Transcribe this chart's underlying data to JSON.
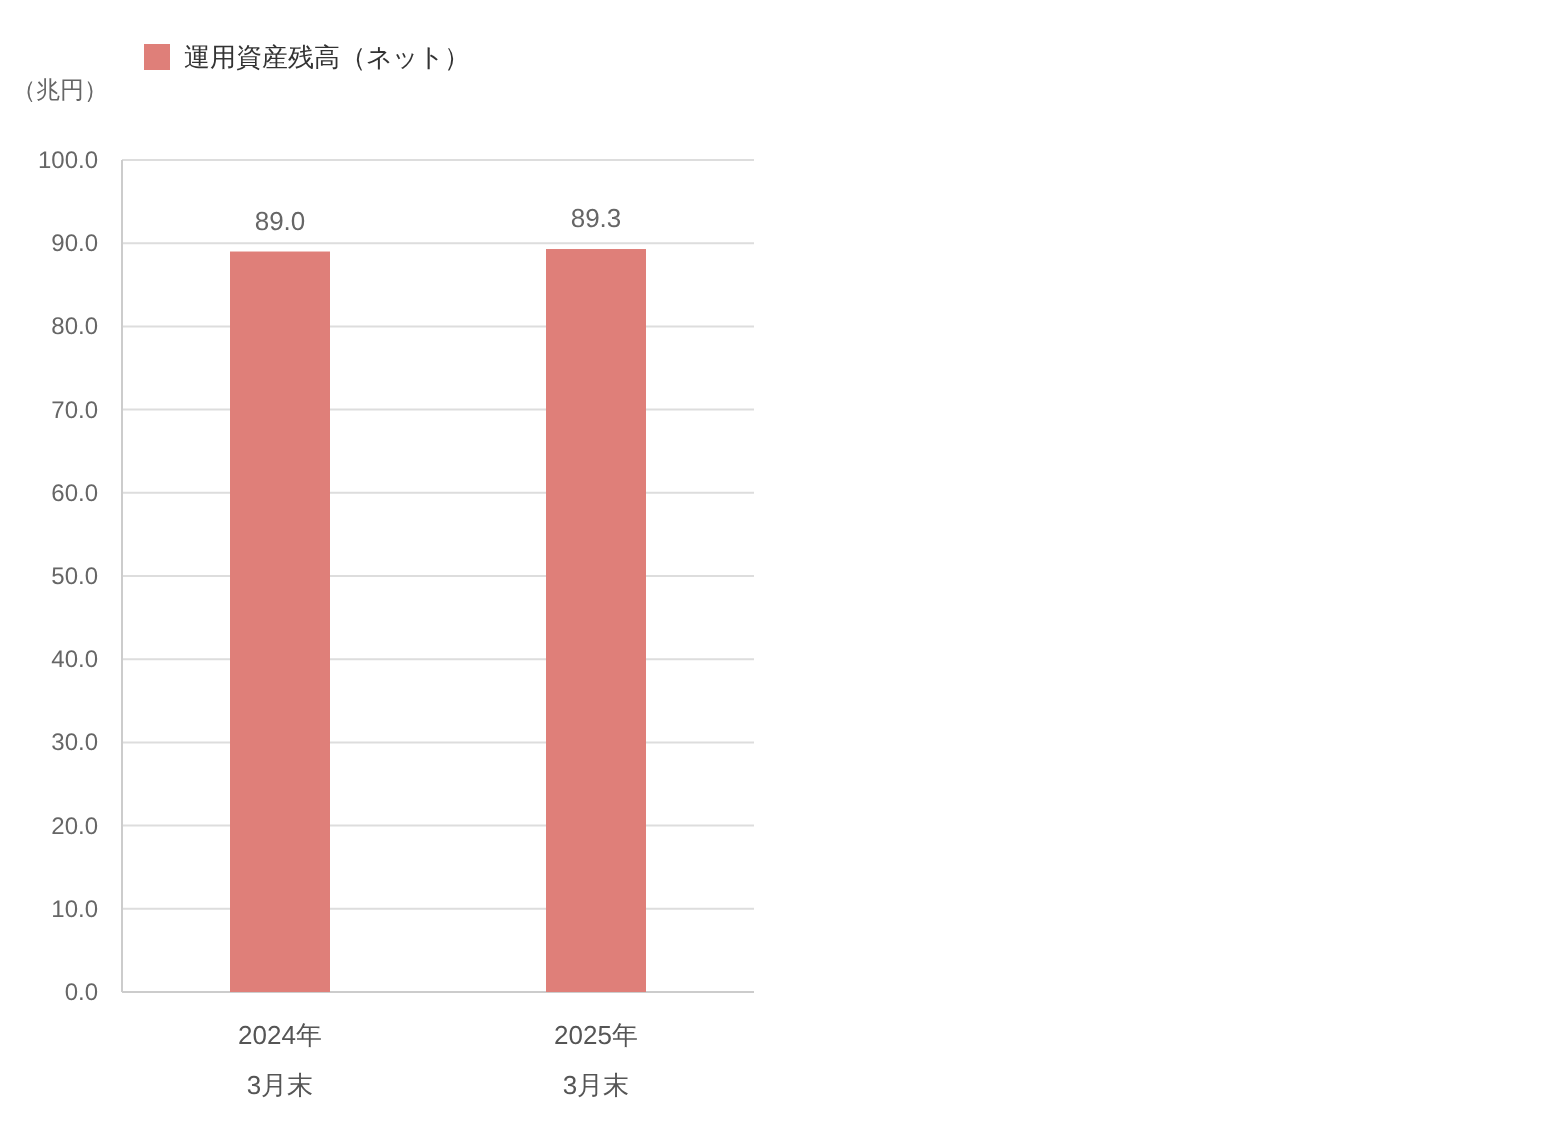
{
  "chart_data": {
    "type": "bar",
    "ylabel": "（兆円）",
    "categories": [
      "2024年\n3月末",
      "2025年\n3月末"
    ],
    "series": [
      {
        "name": "運用資産残高（ネット）",
        "color": "#df7f79",
        "values": [
          89.0,
          89.3
        ],
        "value_labels": [
          "89.0",
          "89.3"
        ]
      }
    ],
    "ylim": [
      0,
      100
    ],
    "yticks": [
      {
        "value": 0,
        "label": "0.0"
      },
      {
        "value": 10,
        "label": "10.0"
      },
      {
        "value": 20,
        "label": "20.0"
      },
      {
        "value": 30,
        "label": "30.0"
      },
      {
        "value": 40,
        "label": "40.0"
      },
      {
        "value": 50,
        "label": "50.0"
      },
      {
        "value": 60,
        "label": "60.0"
      },
      {
        "value": 70,
        "label": "70.0"
      },
      {
        "value": 80,
        "label": "80.0"
      },
      {
        "value": 90,
        "label": "90.0"
      },
      {
        "value": 100,
        "label": "100.0"
      }
    ],
    "grid": "y",
    "legend": "top left"
  }
}
